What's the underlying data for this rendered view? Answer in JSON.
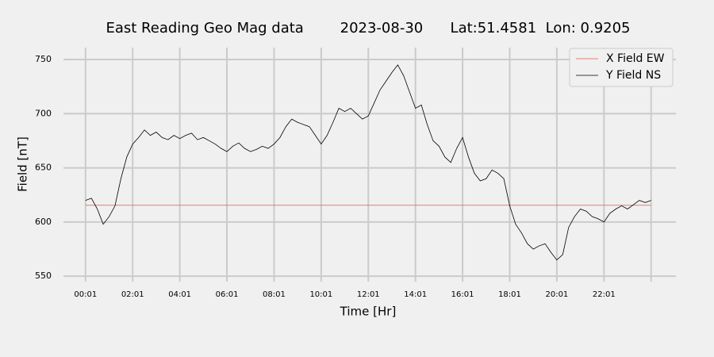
{
  "chart_data": {
    "type": "line",
    "title": "East Reading Geo Mag data        2023-08-30      Lat:51.4581  Lon: 0.9205",
    "xlabel": "Time  [Hr]",
    "ylabel": "Field  [nT]",
    "x": [
      0.0167,
      0.2667,
      0.5167,
      0.7667,
      1.0167,
      1.2667,
      1.5167,
      1.7667,
      2.0167,
      2.2667,
      2.5167,
      2.7667,
      3.0167,
      3.2667,
      3.5167,
      3.7667,
      4.0167,
      4.2667,
      4.5167,
      4.7667,
      5.0167,
      5.2667,
      5.5167,
      5.7667,
      6.0167,
      6.2667,
      6.5167,
      6.7667,
      7.0167,
      7.2667,
      7.5167,
      7.7667,
      8.0167,
      8.2667,
      8.5167,
      8.7667,
      9.0167,
      9.2667,
      9.5167,
      9.7667,
      10.0167,
      10.2667,
      10.5167,
      10.7667,
      11.0167,
      11.2667,
      11.5167,
      11.7667,
      12.0167,
      12.2667,
      12.5167,
      12.7667,
      13.0167,
      13.2667,
      13.5167,
      13.7667,
      14.0167,
      14.2667,
      14.5167,
      14.7667,
      15.0167,
      15.2667,
      15.5167,
      15.7667,
      16.0167,
      16.2667,
      16.5167,
      16.7667,
      17.0167,
      17.2667,
      17.5167,
      17.7667,
      18.0167,
      18.2667,
      18.5167,
      18.7667,
      19.0167,
      19.2667,
      19.5167,
      19.7667,
      20.0167,
      20.2667,
      20.5167,
      20.7667,
      21.0167,
      21.2667,
      21.5167,
      21.7667,
      22.0167,
      22.2667,
      22.5167,
      22.7667,
      23.0167,
      23.2667,
      23.5167,
      23.7667,
      24.0167
    ],
    "series": [
      {
        "name": "X Field EW",
        "color": "#e05a4f",
        "values": [
          615.5,
          615.5,
          615.5,
          615.5,
          615.5,
          615.5,
          615.5,
          615.5,
          615.5,
          615.5,
          615.5,
          615.5,
          615.5,
          615.5,
          615.5,
          615.5,
          615.5,
          615.5,
          615.5,
          615.5,
          615.5,
          615.5,
          615.5,
          615.5,
          615.5,
          615.5,
          615.5,
          615.5,
          615.5,
          615.5,
          615.5,
          615.5,
          615.5,
          615.5,
          615.5,
          615.5,
          615.5,
          615.5,
          615.5,
          615.5,
          615.5,
          615.5,
          615.5,
          615.5,
          615.5,
          615.5,
          615.5,
          615.5,
          615.5,
          615.5,
          615.5,
          615.5,
          615.5,
          615.5,
          615.5,
          615.5,
          615.5,
          615.5,
          615.5,
          615.5,
          615.5,
          615.5,
          615.5,
          615.5,
          615.5,
          615.5,
          615.5,
          615.5,
          615.5,
          615.5,
          615.5,
          615.5,
          615.5,
          615.5,
          615.5,
          615.5,
          615.5,
          615.5,
          615.5,
          615.5,
          615.5,
          615.5,
          615.5,
          615.5,
          615.5,
          615.5,
          615.5,
          615.5,
          615.5,
          615.5,
          615.5,
          615.5,
          615.5,
          615.5,
          615.5,
          615.5,
          615.5
        ]
      },
      {
        "name": "Y Field NS",
        "color": "#000000",
        "values": [
          620,
          622,
          612,
          598,
          605,
          615,
          640,
          660,
          672,
          678,
          685,
          680,
          683,
          678,
          676,
          680,
          677,
          680,
          682,
          676,
          678,
          675,
          672,
          668,
          665,
          670,
          673,
          668,
          665,
          667,
          670,
          668,
          672,
          678,
          688,
          695,
          692,
          690,
          688,
          680,
          672,
          680,
          692,
          705,
          702,
          705,
          700,
          695,
          698,
          710,
          722,
          730,
          738,
          745,
          735,
          720,
          705,
          708,
          690,
          675,
          670,
          660,
          655,
          668,
          678,
          660,
          645,
          638,
          640,
          648,
          645,
          640,
          615,
          598,
          590,
          580,
          575,
          578,
          580,
          572,
          565,
          570,
          595,
          605,
          612,
          610,
          605,
          603,
          600,
          608,
          612,
          615,
          612,
          616,
          620,
          618,
          620
        ]
      }
    ],
    "xlim": [
      -0.92,
      25.07
    ],
    "ylim": [
      545,
      761
    ],
    "xticks": [
      {
        "value": 0.0167,
        "label": "00:01"
      },
      {
        "value": 2.0167,
        "label": "02:01"
      },
      {
        "value": 4.0167,
        "label": "04:01"
      },
      {
        "value": 6.0167,
        "label": "06:01"
      },
      {
        "value": 8.0167,
        "label": "08:01"
      },
      {
        "value": 10.0167,
        "label": "10:01"
      },
      {
        "value": 12.0167,
        "label": "12:01"
      },
      {
        "value": 14.0167,
        "label": "14:01"
      },
      {
        "value": 16.0167,
        "label": "16:01"
      },
      {
        "value": 18.0167,
        "label": "18:01"
      },
      {
        "value": 20.0167,
        "label": "20:01"
      },
      {
        "value": 22.0167,
        "label": "22:01"
      },
      {
        "value": 24.0167,
        "label": null
      }
    ],
    "yticks": [
      550,
      600,
      650,
      700,
      750
    ],
    "grid": true,
    "legend": "upper right"
  }
}
